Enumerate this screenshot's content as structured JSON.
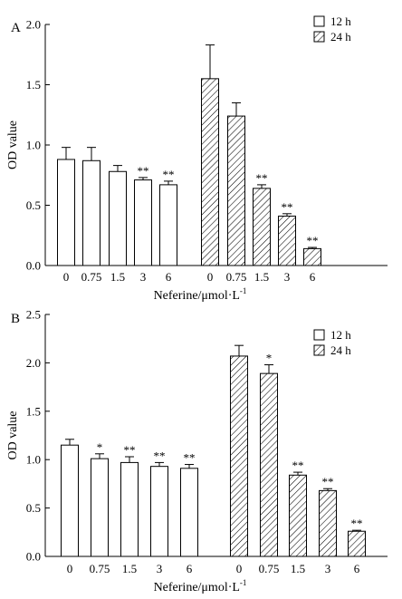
{
  "chart_data": [
    {
      "panel_label": "A",
      "type": "bar",
      "xlabel": "Neferine/μmol·L",
      "xlabel_sup": "-1",
      "ylabel": "OD value",
      "ylim": [
        0,
        2.0
      ],
      "yticks": [
        "0.0",
        "0.5",
        "1.0",
        "1.5",
        "2.0"
      ],
      "grid": false,
      "legend_position": "top-right",
      "groups": [
        {
          "series": "12 h",
          "categories": [
            "0",
            "0.75",
            "1.5",
            "3",
            "6"
          ],
          "values": [
            0.88,
            0.87,
            0.78,
            0.71,
            0.67
          ],
          "errors": [
            0.1,
            0.11,
            0.05,
            0.02,
            0.03
          ],
          "significance": [
            "",
            "",
            "",
            "**",
            "**"
          ]
        },
        {
          "series": "24 h",
          "categories": [
            "0",
            "0.75",
            "1.5",
            "3",
            "6"
          ],
          "values": [
            1.55,
            1.24,
            0.64,
            0.41,
            0.14
          ],
          "errors": [
            0.28,
            0.11,
            0.03,
            0.02,
            0.01
          ],
          "significance": [
            "",
            "",
            "**",
            "**",
            "**"
          ]
        }
      ]
    },
    {
      "panel_label": "B",
      "type": "bar",
      "xlabel": "Neferine/μmol·L",
      "xlabel_sup": "-1",
      "ylabel": "OD value",
      "ylim": [
        0,
        2.5
      ],
      "yticks": [
        "0.0",
        "0.5",
        "1.0",
        "1.5",
        "2.0",
        "2.5"
      ],
      "grid": false,
      "legend_position": "top-right",
      "groups": [
        {
          "series": "12 h",
          "categories": [
            "0",
            "0.75",
            "1.5",
            "3",
            "6"
          ],
          "values": [
            1.15,
            1.01,
            0.97,
            0.93,
            0.91
          ],
          "errors": [
            0.06,
            0.05,
            0.06,
            0.04,
            0.04
          ],
          "significance": [
            "",
            "*",
            "**",
            "**",
            "**"
          ]
        },
        {
          "series": "24 h",
          "categories": [
            "0",
            "0.75",
            "1.5",
            "3",
            "6"
          ],
          "values": [
            2.07,
            1.89,
            0.84,
            0.68,
            0.26
          ],
          "errors": [
            0.11,
            0.09,
            0.03,
            0.02,
            0.01
          ],
          "significance": [
            "",
            "*",
            "**",
            "**",
            "**"
          ]
        }
      ]
    }
  ],
  "colors": {
    "bar_12h_fill": "#ffffff",
    "stroke": "#000000"
  }
}
